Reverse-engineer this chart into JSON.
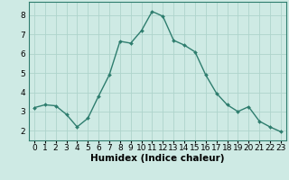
{
  "x": [
    0,
    1,
    2,
    3,
    4,
    5,
    6,
    7,
    8,
    9,
    10,
    11,
    12,
    13,
    14,
    15,
    16,
    17,
    18,
    19,
    20,
    21,
    22,
    23
  ],
  "y": [
    3.2,
    3.35,
    3.3,
    2.85,
    2.2,
    2.65,
    3.8,
    4.9,
    6.65,
    6.55,
    7.2,
    8.2,
    7.95,
    6.7,
    6.45,
    6.1,
    4.9,
    3.95,
    3.35,
    3.0,
    3.25,
    2.5,
    2.2,
    1.95
  ],
  "line_color": "#2e7d6e",
  "marker": "D",
  "marker_size": 2.0,
  "line_width": 1.0,
  "xlabel": "Humidex (Indice chaleur)",
  "xlim": [
    -0.5,
    23.5
  ],
  "ylim": [
    1.5,
    8.7
  ],
  "yticks": [
    2,
    3,
    4,
    5,
    6,
    7,
    8
  ],
  "xticks": [
    0,
    1,
    2,
    3,
    4,
    5,
    6,
    7,
    8,
    9,
    10,
    11,
    12,
    13,
    14,
    15,
    16,
    17,
    18,
    19,
    20,
    21,
    22,
    23
  ],
  "bg_color": "#ceeae4",
  "grid_color": "#aed4cc",
  "tick_label_fontsize": 6.5,
  "xlabel_fontsize": 7.5,
  "spine_color": "#2e7d6e"
}
